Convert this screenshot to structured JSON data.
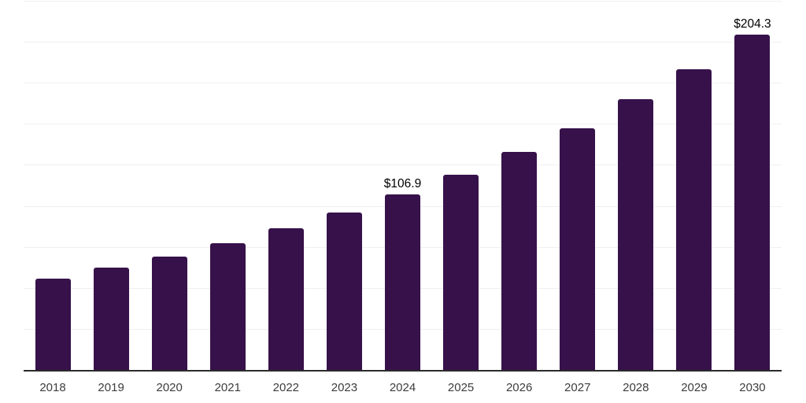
{
  "chart_data": {
    "type": "bar",
    "title": "",
    "xlabel": "",
    "ylabel": "",
    "categories": [
      "2018",
      "2019",
      "2020",
      "2021",
      "2022",
      "2023",
      "2024",
      "2025",
      "2026",
      "2027",
      "2028",
      "2029",
      "2030"
    ],
    "values": [
      55.9,
      62.6,
      69.3,
      77.4,
      86.4,
      96.0,
      106.9,
      118.9,
      133.1,
      147.4,
      164.9,
      183.3,
      204.3
    ],
    "data_labels": [
      "",
      "",
      "",
      "",
      "",
      "",
      "$106.9",
      "",
      "",
      "",
      "",
      "",
      "$204.3"
    ],
    "ylim": [
      0,
      225
    ],
    "gridline_step": 25,
    "grid": true,
    "legend": "none",
    "colors": {
      "bar": "#36114A",
      "axis_line": "#2b2b2b",
      "gridline": "#f0f0f0",
      "data_label": "#000000",
      "tick_label": "#3d3d3d",
      "background": "#ffffff"
    }
  }
}
